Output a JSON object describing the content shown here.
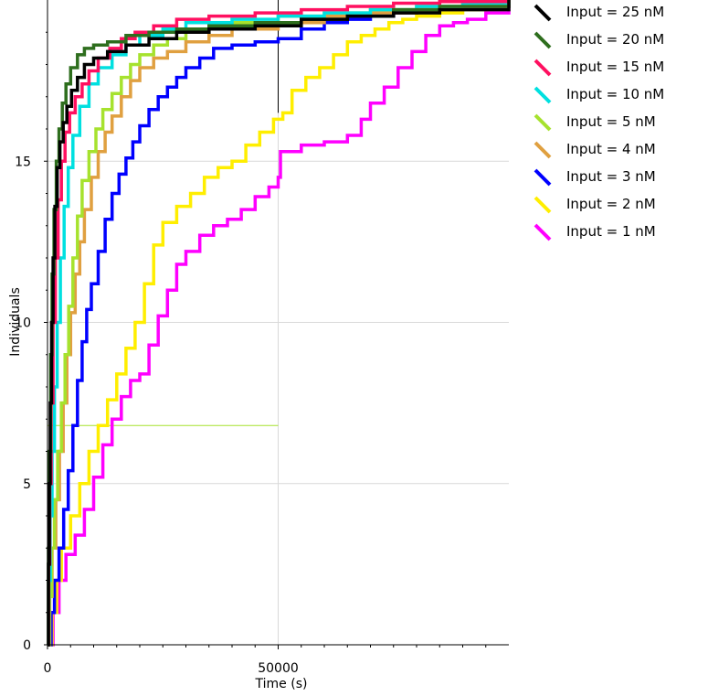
{
  "chart_data": {
    "type": "line",
    "title": "",
    "xlabel": "Time (s)",
    "ylabel": "Individuals",
    "xlim": [
      0,
      100000
    ],
    "ylim": [
      0,
      20
    ],
    "x_ticks": [
      0,
      50000
    ],
    "y_ticks": [
      0,
      5,
      10,
      15
    ],
    "grid": true,
    "legend": "top-right",
    "annotations": [
      {
        "kind": "vline",
        "x": 50000,
        "y_from": 16.5,
        "y_to": 20,
        "color": "#000000"
      },
      {
        "kind": "hline",
        "y": 6.8,
        "x_from": 0,
        "x_to": 50000,
        "color": "#a6e22e"
      }
    ],
    "series": [
      {
        "name": "Input = 1 nM",
        "color": "#ff00ff",
        "x": [
          0,
          1200,
          2500,
          4000,
          6000,
          8000,
          10000,
          12000,
          14000,
          16000,
          18000,
          20000,
          22000,
          24000,
          26000,
          28000,
          30000,
          33000,
          36000,
          39000,
          42000,
          45000,
          48000,
          50000,
          50500,
          55000,
          60000,
          65000,
          68000,
          70000,
          73000,
          76000,
          79000,
          82000,
          85000,
          88000,
          91000,
          95000,
          100000
        ],
        "y": [
          0,
          1.0,
          2.0,
          2.8,
          3.4,
          4.2,
          5.2,
          6.2,
          7.0,
          7.7,
          8.2,
          8.4,
          9.3,
          10.2,
          11.0,
          11.8,
          12.2,
          12.7,
          13.0,
          13.2,
          13.5,
          13.9,
          14.2,
          14.5,
          15.3,
          15.5,
          15.6,
          15.8,
          16.3,
          16.8,
          17.3,
          17.9,
          18.4,
          18.9,
          19.2,
          19.3,
          19.4,
          19.6,
          20.0
        ]
      },
      {
        "name": "Input = 2 nM",
        "color": "#ffee00",
        "x": [
          0,
          1000,
          2000,
          3000,
          5000,
          7000,
          9000,
          11000,
          13000,
          15000,
          17000,
          19000,
          21000,
          23000,
          25000,
          28000,
          31000,
          34000,
          37000,
          40000,
          43000,
          46000,
          49000,
          50000,
          51000,
          53000,
          56000,
          59000,
          62000,
          65000,
          68000,
          71000,
          74000,
          77000,
          80000,
          85000,
          90000,
          95000,
          100000
        ],
        "y": [
          0,
          1.0,
          2.0,
          3.0,
          4.0,
          5.0,
          6.0,
          6.8,
          7.6,
          8.4,
          9.2,
          10.0,
          11.2,
          12.4,
          13.1,
          13.6,
          14.0,
          14.5,
          14.8,
          15.0,
          15.5,
          15.9,
          16.3,
          16.3,
          16.5,
          17.2,
          17.6,
          17.9,
          18.3,
          18.7,
          18.9,
          19.1,
          19.3,
          19.4,
          19.5,
          19.6,
          19.7,
          19.8,
          20.0
        ]
      },
      {
        "name": "Input = 3 nM",
        "color": "#0000ff",
        "x": [
          0,
          800,
          1500,
          2500,
          3500,
          4500,
          5500,
          6500,
          7500,
          8500,
          9500,
          11000,
          12500,
          14000,
          15500,
          17000,
          18500,
          20000,
          22000,
          24000,
          26000,
          28000,
          30000,
          33000,
          36000,
          40000,
          45000,
          50000,
          55000,
          60000,
          65000,
          70000,
          75000,
          80000,
          90000,
          100000
        ],
        "y": [
          0,
          1.0,
          2.0,
          3.0,
          4.2,
          5.4,
          6.8,
          8.2,
          9.4,
          10.4,
          11.2,
          12.2,
          13.2,
          14.0,
          14.6,
          15.1,
          15.6,
          16.1,
          16.6,
          17.0,
          17.3,
          17.6,
          17.9,
          18.2,
          18.5,
          18.6,
          18.7,
          18.8,
          19.1,
          19.3,
          19.4,
          19.5,
          19.6,
          19.7,
          19.8,
          20.0
        ]
      },
      {
        "name": "Input = 4 nM",
        "color": "#e0a040",
        "x": [
          0,
          500,
          1000,
          1800,
          2600,
          3400,
          4200,
          5000,
          6000,
          7000,
          8000,
          9500,
          11000,
          12500,
          14000,
          16000,
          18000,
          20000,
          23000,
          26000,
          30000,
          35000,
          40000,
          50000,
          60000,
          70000,
          80000,
          90000,
          100000
        ],
        "y": [
          0,
          1.5,
          3.0,
          4.5,
          6.0,
          7.5,
          9.0,
          10.3,
          11.5,
          12.5,
          13.5,
          14.5,
          15.3,
          15.9,
          16.4,
          17.0,
          17.5,
          17.9,
          18.2,
          18.4,
          18.7,
          18.9,
          19.1,
          19.3,
          19.5,
          19.6,
          19.7,
          19.8,
          20.0
        ]
      },
      {
        "name": "Input = 5 nM",
        "color": "#a6e22e",
        "x": [
          0,
          400,
          900,
          1500,
          2200,
          3000,
          3800,
          4600,
          5500,
          6500,
          7500,
          9000,
          10500,
          12000,
          14000,
          16000,
          18000,
          20000,
          23000,
          26000,
          30000,
          35000,
          40000,
          50000,
          60000,
          70000,
          80000,
          90000,
          100000
        ],
        "y": [
          0,
          1.5,
          3.0,
          4.5,
          6.0,
          7.5,
          9.0,
          10.5,
          12.0,
          13.3,
          14.4,
          15.3,
          16.0,
          16.6,
          17.1,
          17.6,
          18.0,
          18.3,
          18.6,
          18.8,
          19.0,
          19.2,
          19.3,
          19.5,
          19.6,
          19.7,
          19.8,
          19.9,
          20.0
        ]
      },
      {
        "name": "Input = 10 nM",
        "color": "#00e0e0",
        "x": [
          0,
          300,
          600,
          1000,
          1500,
          2100,
          2800,
          3600,
          4500,
          5500,
          7000,
          9000,
          11000,
          14000,
          17000,
          20000,
          25000,
          30000,
          40000,
          50000,
          60000,
          70000,
          80000,
          90000,
          100000
        ],
        "y": [
          0,
          2.0,
          4.0,
          6.0,
          8.0,
          10.0,
          12.0,
          13.6,
          14.8,
          15.8,
          16.7,
          17.4,
          17.9,
          18.3,
          18.6,
          18.9,
          19.1,
          19.3,
          19.4,
          19.5,
          19.6,
          19.7,
          19.8,
          19.9,
          20.0
        ]
      },
      {
        "name": "Input = 15 nM",
        "color": "#ff1060",
        "x": [
          0,
          250,
          500,
          800,
          1200,
          1700,
          2300,
          3000,
          3800,
          4800,
          6000,
          7500,
          9000,
          11000,
          13500,
          16000,
          19000,
          23000,
          28000,
          35000,
          45000,
          55000,
          65000,
          75000,
          85000,
          100000
        ],
        "y": [
          0,
          2.5,
          5.0,
          7.5,
          10.0,
          12.0,
          13.8,
          15.0,
          15.9,
          16.5,
          17.0,
          17.4,
          17.8,
          18.2,
          18.5,
          18.8,
          19.0,
          19.2,
          19.4,
          19.5,
          19.6,
          19.7,
          19.8,
          19.9,
          19.95,
          20.0
        ]
      },
      {
        "name": "Input = 20 nM",
        "color": "#2e6e1e",
        "x": [
          0,
          200,
          400,
          700,
          1000,
          1400,
          1900,
          2500,
          3200,
          4000,
          5000,
          6500,
          8000,
          10000,
          13000,
          17000,
          22000,
          28000,
          35000,
          45000,
          55000,
          65000,
          75000,
          85000,
          100000
        ],
        "y": [
          0,
          3.0,
          6.0,
          9.0,
          11.5,
          13.5,
          15.0,
          16.0,
          16.8,
          17.4,
          17.9,
          18.3,
          18.5,
          18.6,
          18.7,
          18.9,
          19.0,
          19.1,
          19.2,
          19.3,
          19.4,
          19.5,
          19.7,
          19.8,
          20.0
        ]
      },
      {
        "name": "Input = 25 nM",
        "color": "#000000",
        "x": [
          0,
          200,
          400,
          600,
          900,
          1200,
          1600,
          2100,
          2700,
          3400,
          4200,
          5200,
          6500,
          8000,
          10000,
          13000,
          17000,
          22000,
          28000,
          35000,
          45000,
          55000,
          65000,
          75000,
          85000,
          100000
        ],
        "y": [
          0,
          2.5,
          5.0,
          7.5,
          10.0,
          12.0,
          13.6,
          14.8,
          15.6,
          16.2,
          16.7,
          17.2,
          17.6,
          18.0,
          18.2,
          18.4,
          18.6,
          18.8,
          19.0,
          19.1,
          19.2,
          19.4,
          19.5,
          19.6,
          19.7,
          20.0
        ]
      }
    ],
    "legend_order": [
      "Input = 25 nM",
      "Input = 20 nM",
      "Input = 15 nM",
      "Input = 10 nM",
      "Input = 5 nM",
      "Input = 4 nM",
      "Input = 3 nM",
      "Input = 2 nM",
      "Input = 1 nM"
    ]
  }
}
